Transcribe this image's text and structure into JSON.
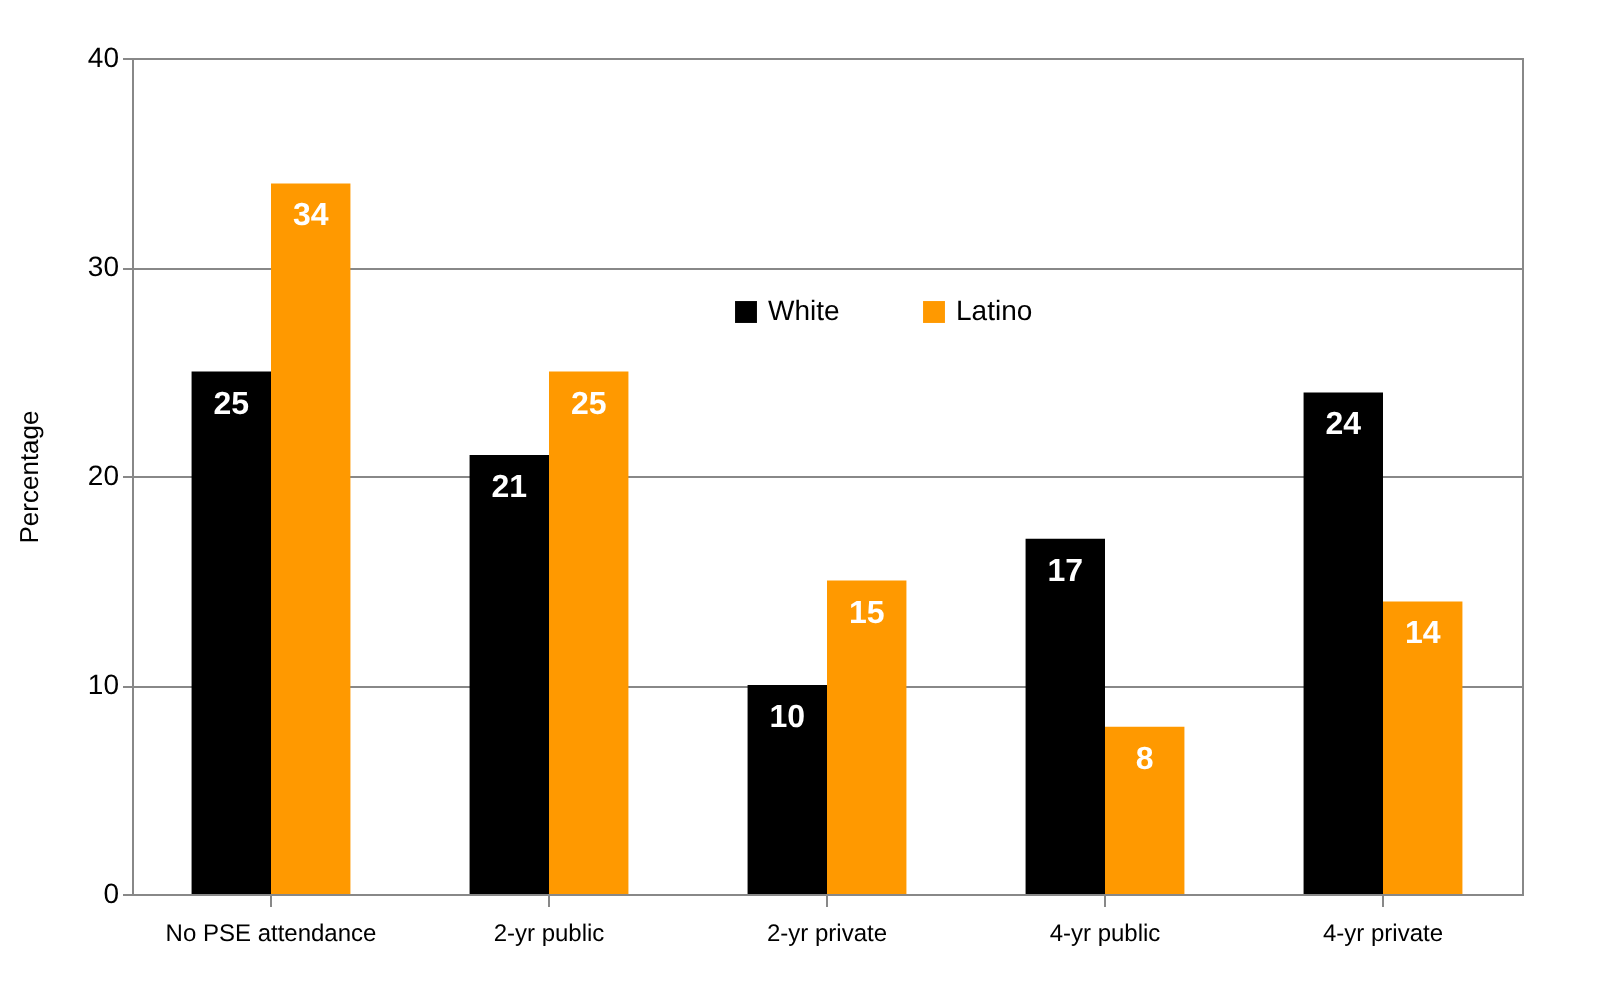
{
  "chart_data": {
    "type": "bar",
    "ylabel": "Percentage",
    "categories": [
      "No PSE attendance",
      "2-yr public",
      "2-yr private",
      "4-yr public",
      "4-yr private"
    ],
    "series": [
      {
        "name": "White",
        "color": "#000000",
        "values": [
          25,
          21,
          10,
          17,
          24
        ]
      },
      {
        "name": "Latino",
        "color": "#ff9900",
        "values": [
          34,
          25,
          15,
          8,
          14
        ]
      }
    ],
    "ylim": [
      0,
      40
    ],
    "yticks": [
      0,
      10,
      20,
      30,
      40
    ],
    "grid": "y",
    "legend": "top",
    "data_labels": true
  }
}
